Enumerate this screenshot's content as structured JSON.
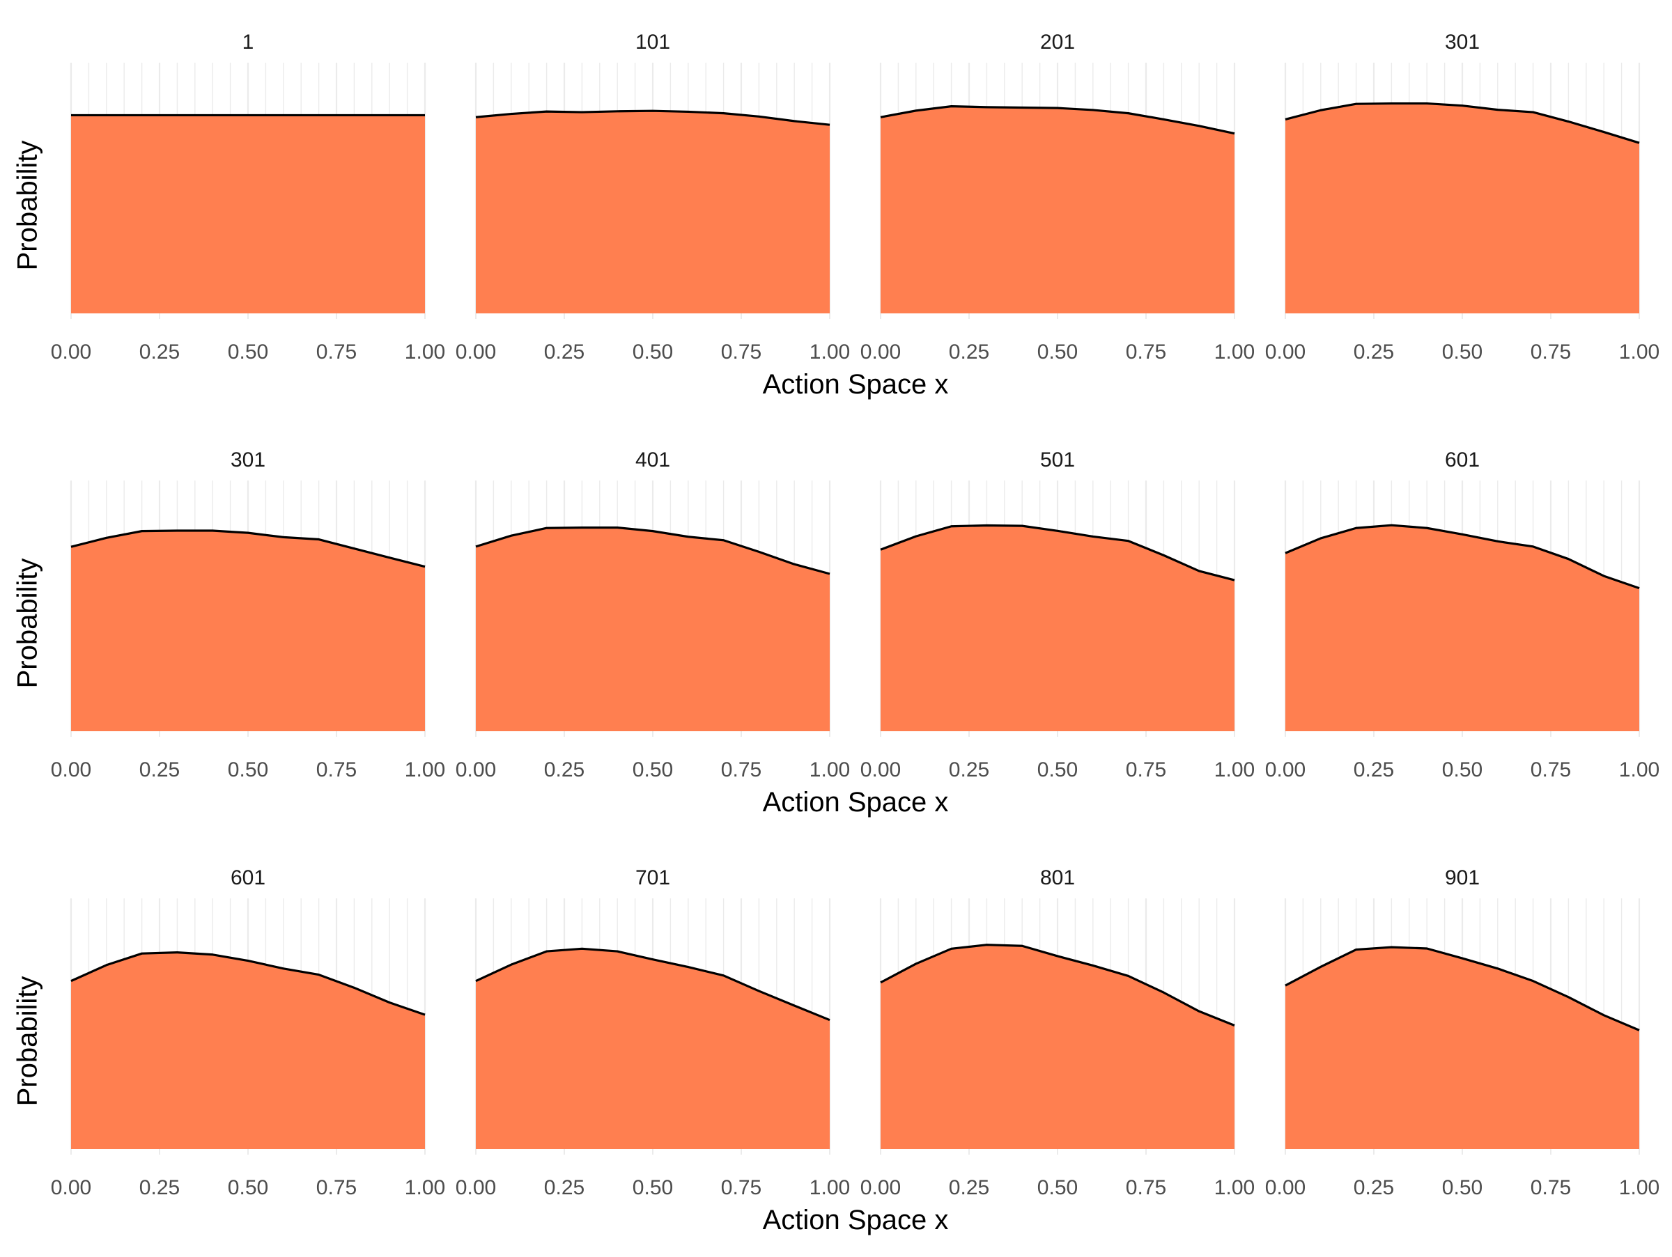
{
  "styles": {
    "fill_color": "#FF7F50",
    "line_color": "#000000",
    "grid_color": "#EBEBEB",
    "tick_text_color": "#4D4D4D",
    "title_color": "#1A1A1A",
    "axis_title_color": "#000000"
  },
  "chart_data": {
    "type": "area",
    "facet_layout": "3 rows x 4 columns, rows share the x-axis title",
    "x": [
      0,
      0.1,
      0.2,
      0.3,
      0.4,
      0.5,
      0.6,
      0.7,
      0.8,
      0.9,
      1.0
    ],
    "xlim": [
      0,
      1
    ],
    "ylim": [
      0,
      0.115
    ],
    "x_tick_values": [
      0,
      0.25,
      0.5,
      0.75,
      1.0
    ],
    "x_tick_labels": [
      "0.00",
      "0.25",
      "0.50",
      "0.75",
      "1.00"
    ],
    "xlabel": "Action Space x",
    "ylabel": "Probability",
    "grid": "vertical major and minor gridlines only",
    "legend": "none",
    "rows": [
      {
        "xlabel": "Action Space x",
        "ylabel": "Probability",
        "panels": [
          {
            "title": "1",
            "values": [
              0.0909,
              0.0909,
              0.0909,
              0.0909,
              0.0909,
              0.0909,
              0.0909,
              0.0909,
              0.0909,
              0.0909,
              0.0909
            ]
          },
          {
            "title": "101",
            "values": [
              0.09,
              0.0915,
              0.0926,
              0.0923,
              0.0927,
              0.0929,
              0.0925,
              0.0918,
              0.0903,
              0.0882,
              0.0865
            ]
          },
          {
            "title": "201",
            "values": [
              0.09,
              0.093,
              0.095,
              0.0946,
              0.0944,
              0.0942,
              0.0933,
              0.0918,
              0.089,
              0.086,
              0.0825
            ]
          },
          {
            "title": "301",
            "values": [
              0.089,
              0.0932,
              0.0961,
              0.0963,
              0.0963,
              0.0953,
              0.0934,
              0.0923,
              0.088,
              0.0832,
              0.0782
            ]
          }
        ]
      },
      {
        "xlabel": "Action Space x",
        "ylabel": "Probability",
        "panels": [
          {
            "title": "301",
            "values": [
              0.0846,
              0.0887,
              0.0918,
              0.092,
              0.092,
              0.091,
              0.089,
              0.088,
              0.0838,
              0.0796,
              0.0755
            ]
          },
          {
            "title": "401",
            "values": [
              0.0847,
              0.0897,
              0.0932,
              0.0934,
              0.0934,
              0.0918,
              0.0892,
              0.0876,
              0.0823,
              0.0766,
              0.0722
            ]
          },
          {
            "title": "501",
            "values": [
              0.0833,
              0.0894,
              0.094,
              0.0944,
              0.0942,
              0.0919,
              0.0893,
              0.0873,
              0.0807,
              0.0735,
              0.0693
            ]
          },
          {
            "title": "601",
            "values": [
              0.0817,
              0.0885,
              0.0932,
              0.0945,
              0.0932,
              0.0903,
              0.0871,
              0.0847,
              0.079,
              0.0712,
              0.0656
            ]
          }
        ]
      },
      {
        "xlabel": "Action Space x",
        "ylabel": "Probability",
        "panels": [
          {
            "title": "601",
            "values": [
              0.0771,
              0.0844,
              0.0897,
              0.0902,
              0.0892,
              0.0864,
              0.0828,
              0.08,
              0.074,
              0.0672,
              0.0616
            ]
          },
          {
            "title": "701",
            "values": [
              0.0771,
              0.0846,
              0.0907,
              0.0919,
              0.0907,
              0.087,
              0.0835,
              0.0796,
              0.0725,
              0.0658,
              0.0592
            ]
          },
          {
            "title": "801",
            "values": [
              0.0764,
              0.085,
              0.0919,
              0.0937,
              0.0932,
              0.0885,
              0.0842,
              0.0794,
              0.0718,
              0.0632,
              0.0567
            ]
          },
          {
            "title": "901",
            "values": [
              0.075,
              0.0836,
              0.0915,
              0.0926,
              0.092,
              0.0875,
              0.0828,
              0.0771,
              0.0697,
              0.0614,
              0.0545
            ]
          }
        ]
      }
    ]
  }
}
